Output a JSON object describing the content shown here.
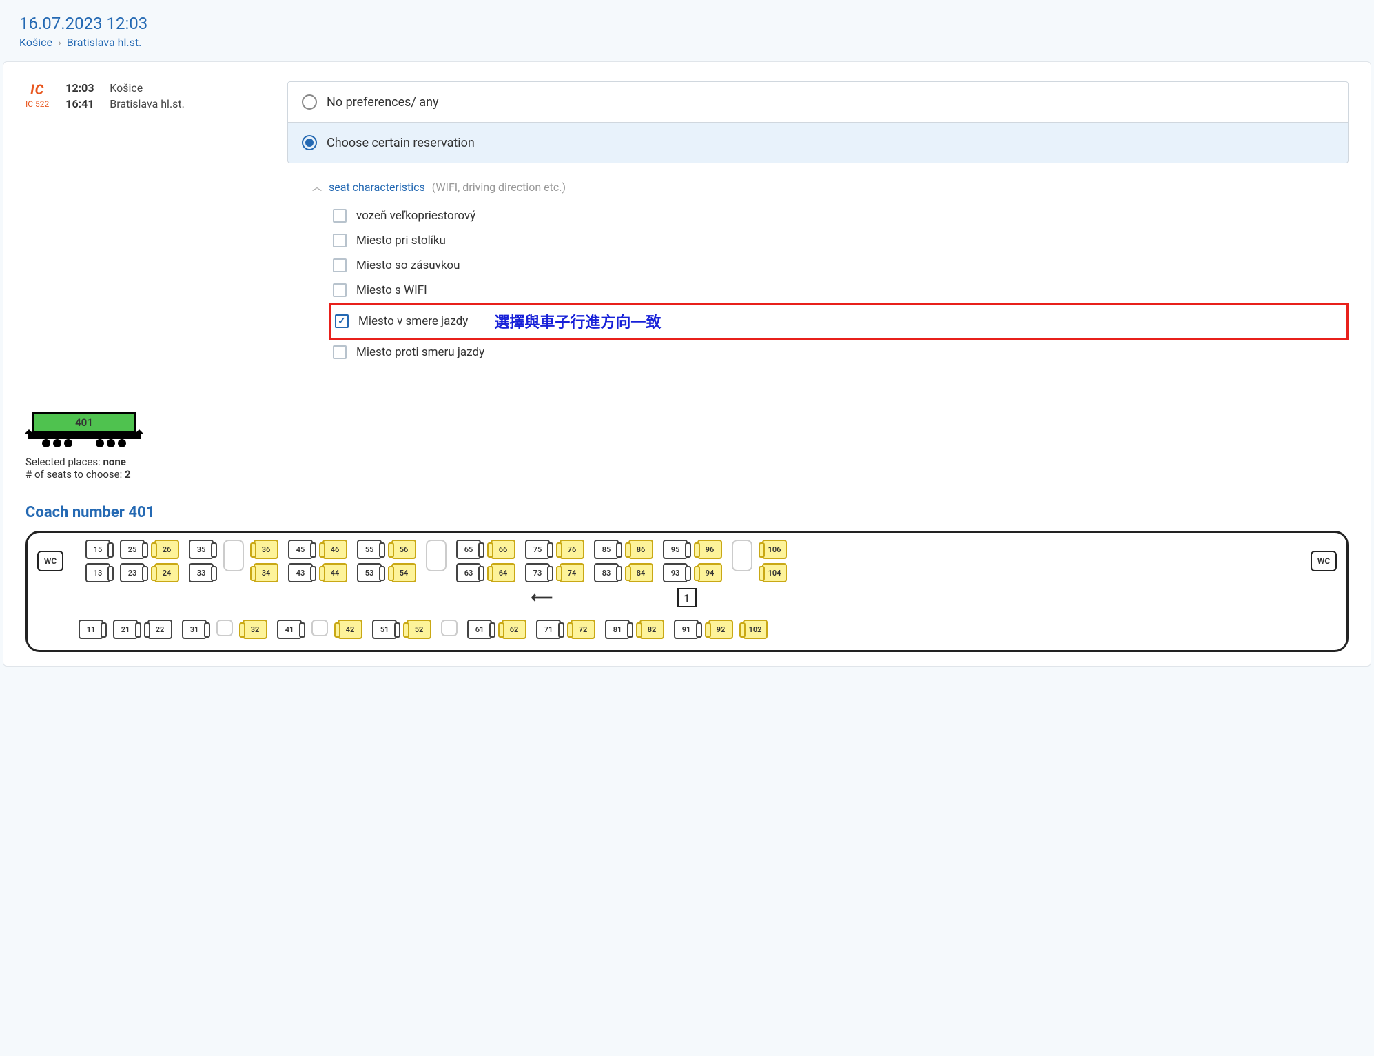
{
  "header": {
    "datetime": "16.07.2023 12:03",
    "from": "Košice",
    "to": "Bratislava hl.st."
  },
  "train": {
    "badge_top": "IC",
    "badge_num": "IC 522",
    "dep_time": "12:03",
    "dep_station": "Košice",
    "arr_time": "16:41",
    "arr_station": "Bratislava hl.st."
  },
  "options": {
    "any": "No preferences/ any",
    "choose": "Choose certain reservation"
  },
  "characteristics": {
    "title": "seat characteristics",
    "hint": "(WIFI, driving direction etc.)",
    "items": [
      {
        "label": "vozeň veľkopriestorový",
        "checked": false,
        "highlight": false
      },
      {
        "label": "Miesto pri stolíku",
        "checked": false,
        "highlight": false
      },
      {
        "label": "Miesto so zásuvkou",
        "checked": false,
        "highlight": false
      },
      {
        "label": "Miesto s WIFI",
        "checked": false,
        "highlight": false
      },
      {
        "label": "Miesto v smere jazdy",
        "checked": true,
        "highlight": true
      },
      {
        "label": "Miesto proti smeru jazdy",
        "checked": false,
        "highlight": false
      }
    ],
    "annotation": "選擇與車子行進方向一致"
  },
  "coach": {
    "number": "401",
    "selected_label": "Selected places:",
    "selected_value": "none",
    "tochoose_label": "# of seats to choose:",
    "tochoose_value": "2",
    "title": "Coach number 401",
    "wc": "WC",
    "floor": "1",
    "arrow": "⟵",
    "rowA": [
      {
        "n": "15",
        "a": false,
        "d": "right"
      },
      {
        "n": "25",
        "a": false,
        "d": "right"
      },
      {
        "n": "26",
        "a": true,
        "d": "left"
      },
      {
        "n": "35",
        "a": false,
        "d": "right"
      },
      {
        "n": "36",
        "a": true,
        "d": "left"
      },
      {
        "n": "45",
        "a": false,
        "d": "right"
      },
      {
        "n": "46",
        "a": true,
        "d": "left"
      },
      {
        "n": "55",
        "a": false,
        "d": "right"
      },
      {
        "n": "56",
        "a": true,
        "d": "left"
      },
      {
        "n": "65",
        "a": false,
        "d": "right"
      },
      {
        "n": "66",
        "a": true,
        "d": "left"
      },
      {
        "n": "75",
        "a": false,
        "d": "right"
      },
      {
        "n": "76",
        "a": true,
        "d": "left"
      },
      {
        "n": "85",
        "a": false,
        "d": "right"
      },
      {
        "n": "86",
        "a": true,
        "d": "left"
      },
      {
        "n": "95",
        "a": false,
        "d": "right"
      },
      {
        "n": "96",
        "a": true,
        "d": "left"
      },
      {
        "n": "106",
        "a": true,
        "d": "left"
      }
    ],
    "rowB": [
      {
        "n": "13",
        "a": false,
        "d": "right"
      },
      {
        "n": "23",
        "a": false,
        "d": "right"
      },
      {
        "n": "24",
        "a": true,
        "d": "left"
      },
      {
        "n": "33",
        "a": false,
        "d": "right"
      },
      {
        "n": "34",
        "a": true,
        "d": "left"
      },
      {
        "n": "43",
        "a": false,
        "d": "right"
      },
      {
        "n": "44",
        "a": true,
        "d": "left"
      },
      {
        "n": "53",
        "a": false,
        "d": "right"
      },
      {
        "n": "54",
        "a": true,
        "d": "left"
      },
      {
        "n": "63",
        "a": false,
        "d": "right"
      },
      {
        "n": "64",
        "a": true,
        "d": "left"
      },
      {
        "n": "73",
        "a": false,
        "d": "right"
      },
      {
        "n": "74",
        "a": true,
        "d": "left"
      },
      {
        "n": "83",
        "a": false,
        "d": "right"
      },
      {
        "n": "84",
        "a": true,
        "d": "left"
      },
      {
        "n": "93",
        "a": false,
        "d": "right"
      },
      {
        "n": "94",
        "a": true,
        "d": "left"
      },
      {
        "n": "104",
        "a": true,
        "d": "left"
      }
    ],
    "rowC": [
      {
        "n": "11",
        "a": false,
        "d": "right"
      },
      {
        "n": "21",
        "a": false,
        "d": "right"
      },
      {
        "n": "22",
        "a": false,
        "d": "left"
      },
      {
        "n": "31",
        "a": false,
        "d": "right"
      },
      {
        "n": "32",
        "a": true,
        "d": "left"
      },
      {
        "n": "41",
        "a": false,
        "d": "right"
      },
      {
        "n": "42",
        "a": true,
        "d": "left"
      },
      {
        "n": "51",
        "a": false,
        "d": "right"
      },
      {
        "n": "52",
        "a": true,
        "d": "left"
      },
      {
        "n": "61",
        "a": false,
        "d": "right"
      },
      {
        "n": "62",
        "a": true,
        "d": "left"
      },
      {
        "n": "71",
        "a": false,
        "d": "right"
      },
      {
        "n": "72",
        "a": true,
        "d": "left"
      },
      {
        "n": "81",
        "a": false,
        "d": "right"
      },
      {
        "n": "82",
        "a": true,
        "d": "left"
      },
      {
        "n": "91",
        "a": false,
        "d": "right"
      },
      {
        "n": "92",
        "a": true,
        "d": "left"
      },
      {
        "n": "102",
        "a": true,
        "d": "left"
      }
    ]
  },
  "colors": {
    "brand_blue": "#2469b3",
    "ic_orange": "#e8561e",
    "selected_bg": "#e8f2fb",
    "highlight_red": "#e8201b",
    "annotation_blue": "#1720d8",
    "seat_avail": "#fdf39a",
    "coach_green": "#4fc24f"
  }
}
